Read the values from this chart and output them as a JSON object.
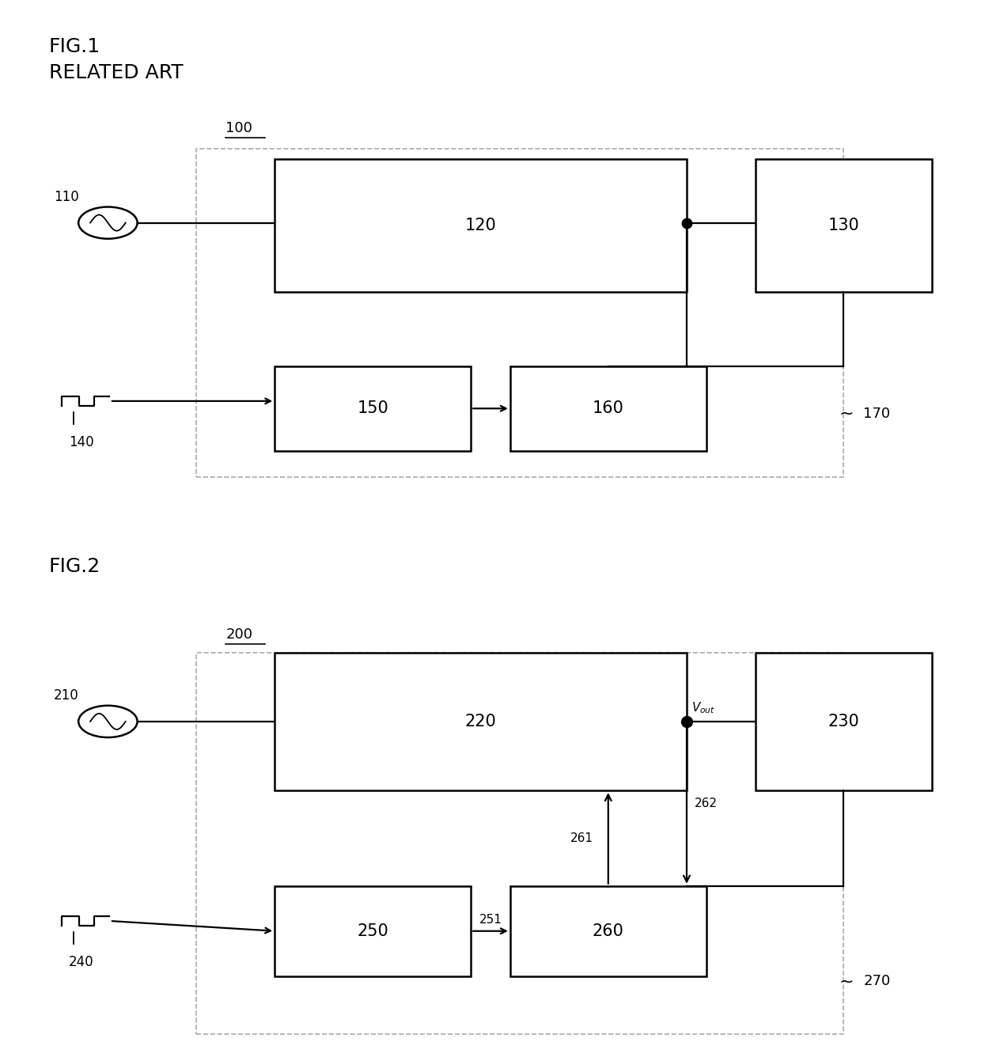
{
  "fig1": {
    "title": "FIG.1",
    "subtitle": "RELATED ART",
    "labels": {
      "100": "100",
      "110": "110",
      "120": "120",
      "130": "130",
      "140": "140",
      "150": "150",
      "160": "160",
      "170": "170"
    }
  },
  "fig2": {
    "title": "FIG.2",
    "labels": {
      "200": "200",
      "210": "210",
      "220": "220",
      "230": "230",
      "240": "240",
      "250": "250",
      "260": "260",
      "261": "261",
      "262": "262",
      "251": "251",
      "270": "270",
      "vout": "V_out"
    }
  },
  "colors": {
    "black": "#000000",
    "white": "#ffffff",
    "gray_dash": "#aaaaaa"
  },
  "font": {
    "title_size": 18,
    "label_size": 15,
    "small_size": 13,
    "tiny_size": 12
  }
}
